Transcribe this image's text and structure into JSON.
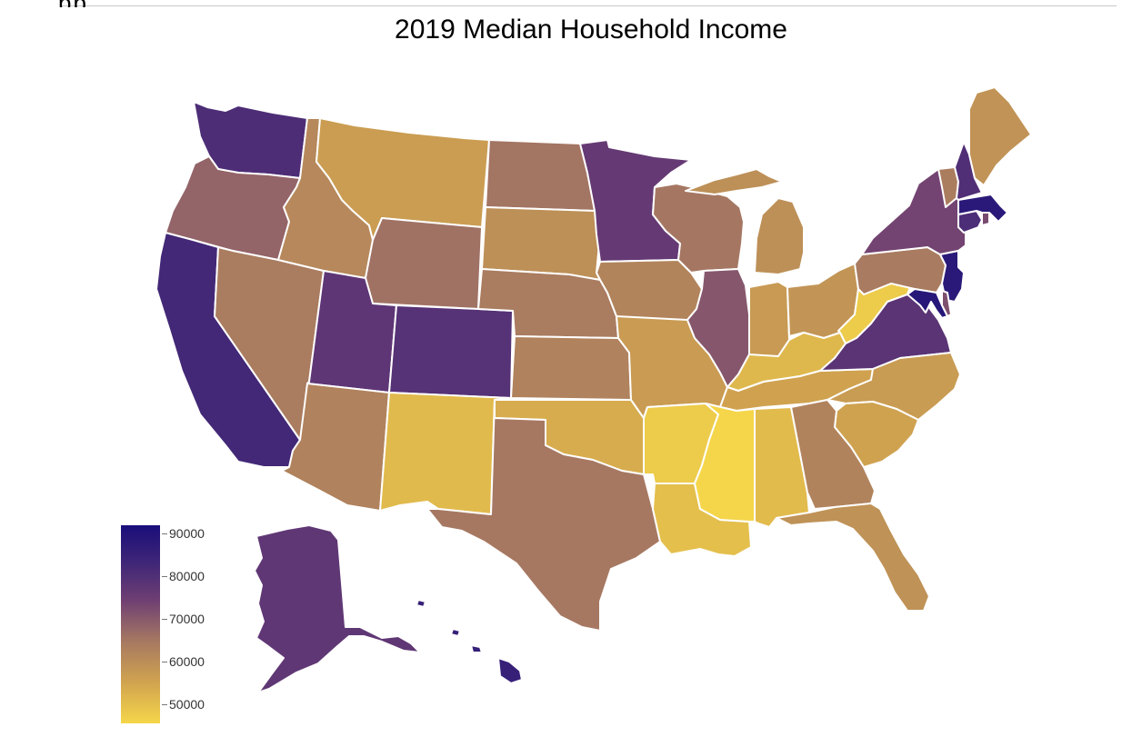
{
  "title": "2019 Median Household Income",
  "color_scale": {
    "min": 47000,
    "max": 90000,
    "colors": [
      "#f5d64a",
      "#d2a54f",
      "#a57762",
      "#6f3f73",
      "#3d2578",
      "#1a0e7a"
    ]
  },
  "legend": {
    "ticks": [
      {
        "label": "90000",
        "value": 90000
      },
      {
        "label": "80000",
        "value": 80000
      },
      {
        "label": "70000",
        "value": 70000
      },
      {
        "label": "60000",
        "value": 60000
      },
      {
        "label": "50000",
        "value": 50000
      }
    ]
  },
  "states": [
    {
      "abbr": "WA",
      "value": 78687
    },
    {
      "abbr": "OR",
      "value": 67058
    },
    {
      "abbr": "CA",
      "value": 80440
    },
    {
      "abbr": "NV",
      "value": 63276
    },
    {
      "abbr": "ID",
      "value": 60999
    },
    {
      "abbr": "MT",
      "value": 57153
    },
    {
      "abbr": "WY",
      "value": 65003
    },
    {
      "abbr": "UT",
      "value": 75780
    },
    {
      "abbr": "AZ",
      "value": 62055
    },
    {
      "abbr": "CO",
      "value": 77127
    },
    {
      "abbr": "NM",
      "value": 51945
    },
    {
      "abbr": "ND",
      "value": 64577
    },
    {
      "abbr": "SD",
      "value": 59533
    },
    {
      "abbr": "NE",
      "value": 63229
    },
    {
      "abbr": "KS",
      "value": 62087
    },
    {
      "abbr": "OK",
      "value": 54449
    },
    {
      "abbr": "TX",
      "value": 64034
    },
    {
      "abbr": "MN",
      "value": 74593
    },
    {
      "abbr": "IA",
      "value": 61691
    },
    {
      "abbr": "MO",
      "value": 57409
    },
    {
      "abbr": "AR",
      "value": 48952
    },
    {
      "abbr": "LA",
      "value": 51073
    },
    {
      "abbr": "WI",
      "value": 64168
    },
    {
      "abbr": "IL",
      "value": 69187
    },
    {
      "abbr": "MI",
      "value": 59584
    },
    {
      "abbr": "IN",
      "value": 57603
    },
    {
      "abbr": "OH",
      "value": 58642
    },
    {
      "abbr": "KY",
      "value": 52295
    },
    {
      "abbr": "TN",
      "value": 56071
    },
    {
      "abbr": "MS",
      "value": 45792
    },
    {
      "abbr": "AL",
      "value": 51734
    },
    {
      "abbr": "WV",
      "value": 48850
    },
    {
      "abbr": "VA",
      "value": 76456
    },
    {
      "abbr": "NC",
      "value": 57341
    },
    {
      "abbr": "SC",
      "value": 56227
    },
    {
      "abbr": "GA",
      "value": 61980
    },
    {
      "abbr": "FL",
      "value": 59227
    },
    {
      "abbr": "PA",
      "value": 63463
    },
    {
      "abbr": "NY",
      "value": 72108
    },
    {
      "abbr": "NJ",
      "value": 85751
    },
    {
      "abbr": "DE",
      "value": 70176
    },
    {
      "abbr": "MD",
      "value": 86738
    },
    {
      "abbr": "CT",
      "value": 78833
    },
    {
      "abbr": "RI",
      "value": 71169
    },
    {
      "abbr": "MA",
      "value": 85843
    },
    {
      "abbr": "VT",
      "value": 63001
    },
    {
      "abbr": "NH",
      "value": 77933
    },
    {
      "abbr": "ME",
      "value": 58924
    },
    {
      "abbr": "AK",
      "value": 75463
    },
    {
      "abbr": "HI",
      "value": 83102
    }
  ]
}
